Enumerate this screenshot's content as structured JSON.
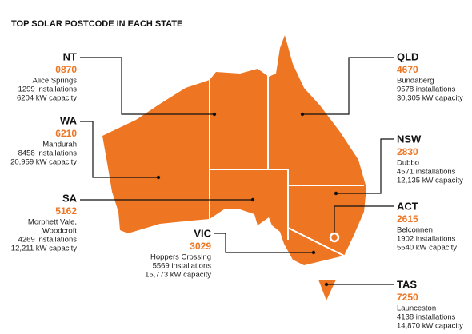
{
  "title": "TOP SOLAR POSTCODE IN EACH STATE",
  "states": [
    {
      "code": "NT",
      "postcode": "0870",
      "lines": [
        "Alice Springs",
        "1299 installations",
        "6204 kW capacity"
      ]
    },
    {
      "code": "WA",
      "postcode": "6210",
      "lines": [
        "Mandurah",
        "8458 installations",
        "20,959 kW capacity"
      ]
    },
    {
      "code": "SA",
      "postcode": "5162",
      "lines": [
        "Morphett Vale,",
        "Woodcroft",
        "4269 installations",
        "12,211 kW capacity"
      ]
    },
    {
      "code": "VIC",
      "postcode": "3029",
      "lines": [
        "Hoppers Crossing",
        "5569 installations",
        "15,773 kW capacity"
      ]
    },
    {
      "code": "QLD",
      "postcode": "4670",
      "lines": [
        "Bundaberg",
        "9578 installations",
        "30,305 kW capacity"
      ]
    },
    {
      "code": "NSW",
      "postcode": "2830",
      "lines": [
        "Dubbo",
        "4571 installations",
        "12,135 kW capacity"
      ]
    },
    {
      "code": "ACT",
      "postcode": "2615",
      "lines": [
        "Belconnen",
        "1902 installations",
        "5540 kW capacity"
      ]
    },
    {
      "code": "TAS",
      "postcode": "7250",
      "lines": [
        "Launceston",
        "4138 installations",
        "14,870 kW capacity"
      ]
    }
  ]
}
